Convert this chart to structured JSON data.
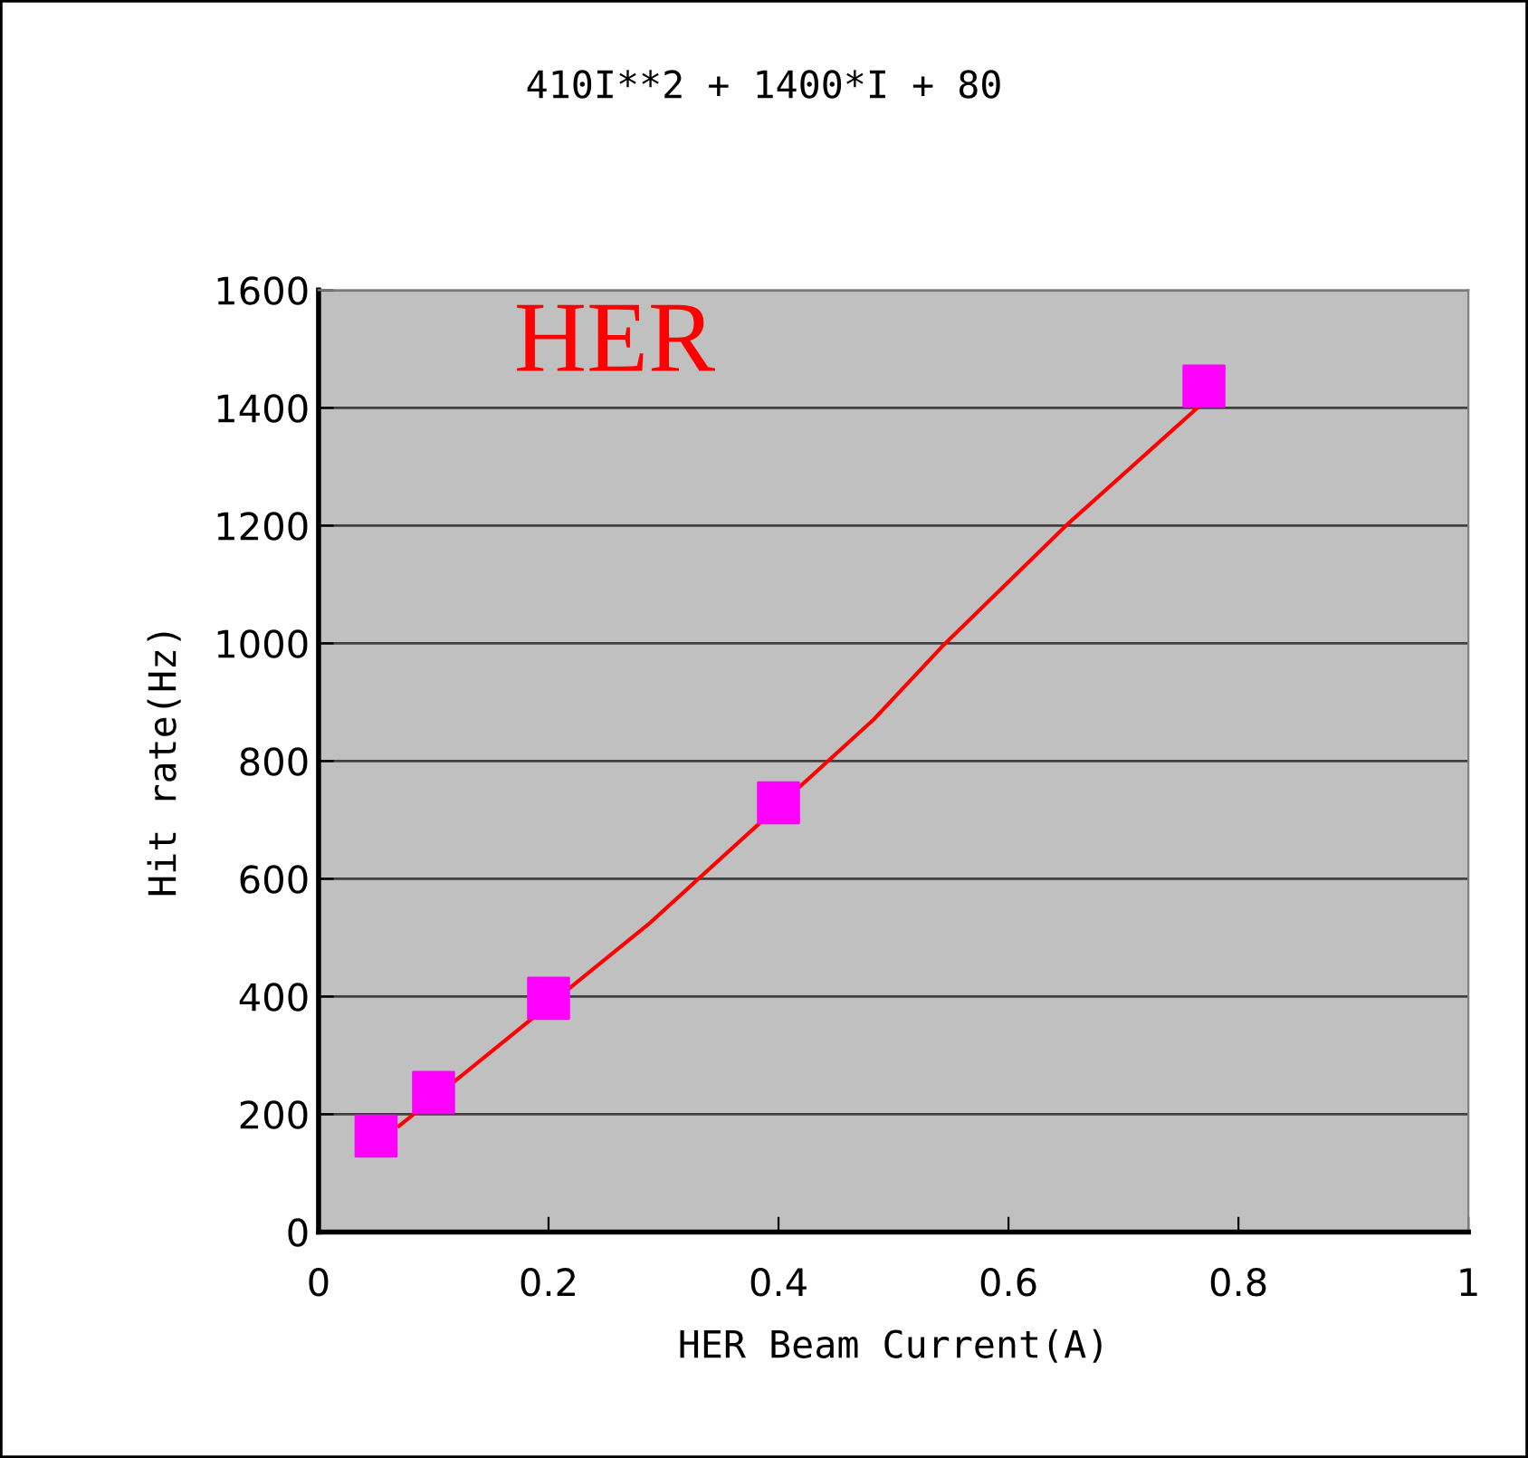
{
  "chart_data": {
    "type": "scatter",
    "title": "410I**2 + 1400*I + 80",
    "xlabel": "HER Beam Current(A)",
    "ylabel": "Hit rate(Hz)",
    "annotations": [
      "HER"
    ],
    "series": [
      {
        "color": "#ff00ff",
        "marker": "square",
        "x": [
          0.05,
          0.1,
          0.2,
          0.4,
          0.77
        ],
        "values": [
          163,
          237,
          397,
          729,
          1437
        ]
      },
      {
        "type": "line",
        "color": "#ff0000",
        "marker": "none",
        "x": [
          0.07,
          0.145,
          0.287,
          0.483,
          0.542,
          0.65,
          0.77
        ],
        "values": [
          180,
          298,
          523,
          871,
          994,
          1200,
          1410
        ]
      }
    ],
    "xlim": [
      0,
      1
    ],
    "xticks": [
      0,
      0.2,
      0.4,
      0.6,
      0.8,
      1
    ],
    "ylim": [
      0,
      1600
    ],
    "yticks": [
      0,
      200,
      400,
      600,
      800,
      1000,
      1200,
      1400,
      1600
    ],
    "grid": "y",
    "legend": false
  }
}
